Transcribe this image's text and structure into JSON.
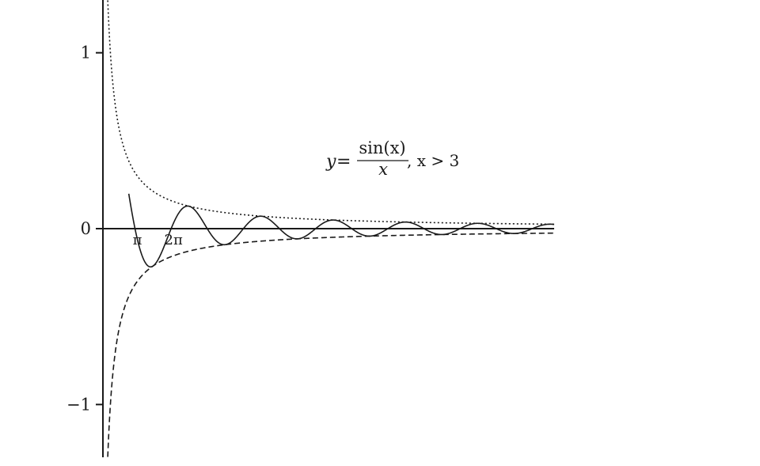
{
  "chart_data": {
    "type": "line",
    "title": "",
    "xlabel": "",
    "ylabel": "",
    "xlim": [
      0.35,
      39.6
    ],
    "ylim": [
      -1.3,
      1.3
    ],
    "grid": false,
    "y_ticks": [
      {
        "value": 1,
        "label": "1"
      },
      {
        "value": 0,
        "label": "0"
      },
      {
        "value": -1,
        "label": "−1"
      }
    ],
    "x_annotations": [
      {
        "value": 3.14159,
        "label": "π"
      },
      {
        "value": 6.28318,
        "label": "2π"
      }
    ],
    "formula": {
      "lhs": "y",
      "eq": "=",
      "numerator": "sin(x)",
      "denominator": "x",
      "condition": ", x > 3"
    },
    "series": [
      {
        "function": "sin(x)/x",
        "x_range": [
          2.6,
          39.6
        ],
        "style": "solid"
      },
      {
        "function": "1/x",
        "x_range": [
          0.6,
          39.6
        ],
        "style": "dotted"
      },
      {
        "function": "-1/x",
        "x_range": [
          0.6,
          39.6
        ],
        "style": "dashed"
      }
    ]
  }
}
